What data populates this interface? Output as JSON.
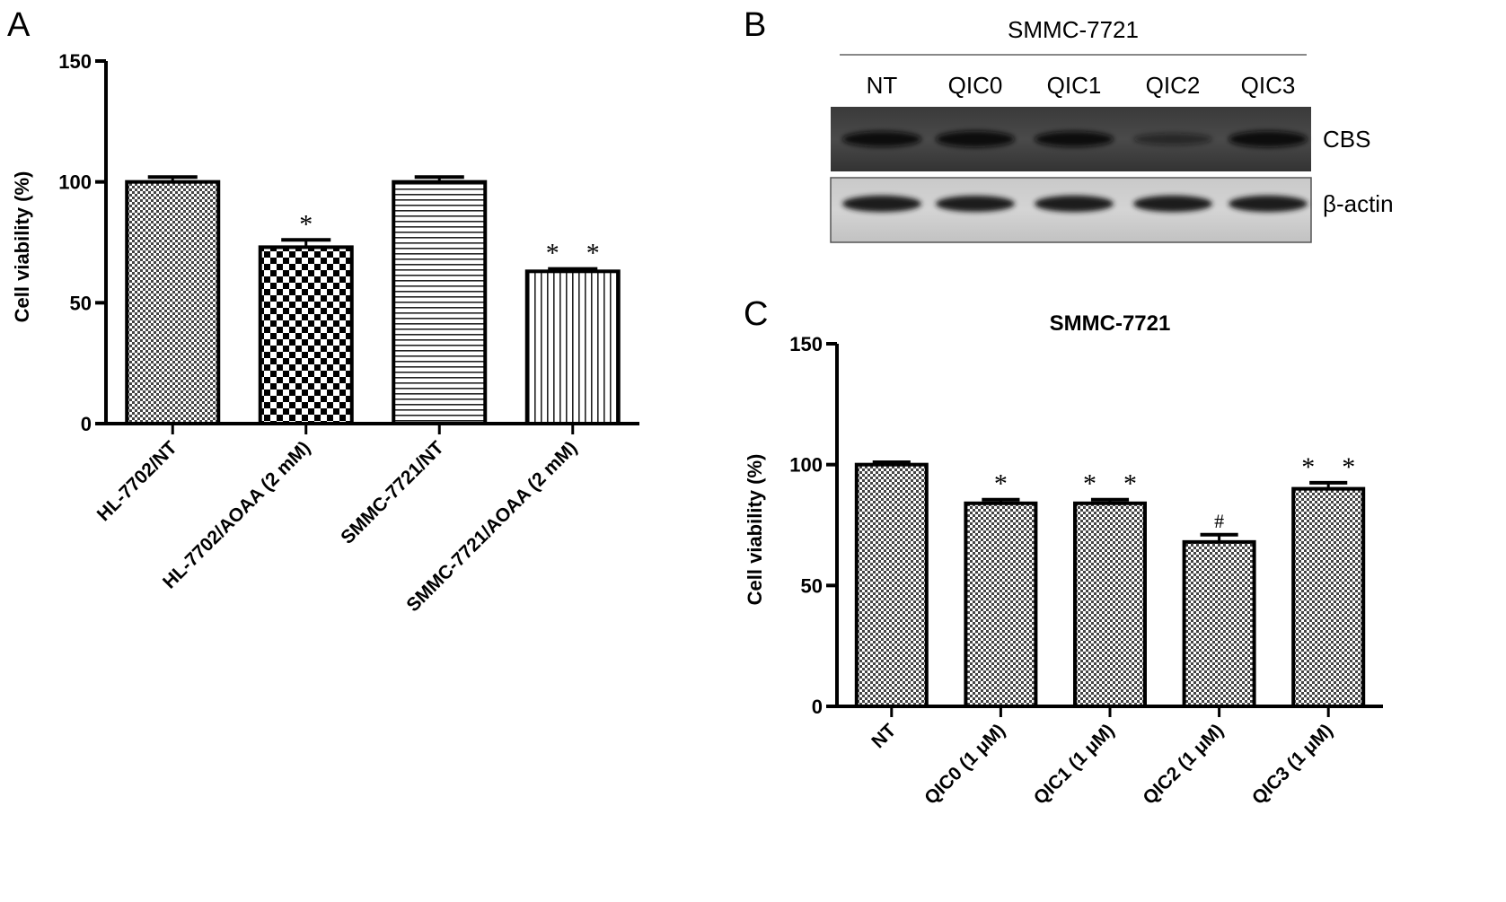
{
  "panels": {
    "A": {
      "letter": "A"
    },
    "B": {
      "letter": "B"
    },
    "C": {
      "letter": "C"
    }
  },
  "chart_data": [
    {
      "panel": "A",
      "type": "bar",
      "title": "",
      "xlabel": "",
      "ylabel": "Cell viability (%)",
      "ylim": [
        0,
        150
      ],
      "yticks": [
        0,
        50,
        100,
        150
      ],
      "categories": [
        "HL-7702/NT",
        "HL-7702/AOAA (2 mM)",
        "SMMC-7721/NT",
        "SMMC-7721/AOAA (2 mM)"
      ],
      "values": [
        100,
        73,
        100,
        63
      ],
      "errors": [
        2,
        3,
        2,
        1
      ],
      "patterns": [
        "fine-check",
        "coarse-check",
        "horizontal-lines",
        "vertical-lines"
      ],
      "significance": [
        "",
        "*",
        "",
        "* *"
      ],
      "grid": false
    },
    {
      "panel": "C",
      "type": "bar",
      "title": "SMMC-7721",
      "xlabel": "",
      "ylabel": "Cell viability (%)",
      "ylim": [
        0,
        150
      ],
      "yticks": [
        0,
        50,
        100,
        150
      ],
      "categories": [
        "NT",
        "QIC0 (1 μM)",
        "QIC1 (1 μM)",
        "QIC2 (1 μM)",
        "QIC3 (1 μM)"
      ],
      "values": [
        100,
        84,
        84,
        68,
        90
      ],
      "errors": [
        1,
        1.5,
        1.5,
        3,
        2.5
      ],
      "patterns": [
        "fine-check",
        "fine-check",
        "fine-check",
        "fine-check",
        "fine-check"
      ],
      "significance": [
        "",
        "*",
        "* *",
        "#",
        "* *"
      ],
      "grid": false
    }
  ],
  "western_blot": {
    "cell_line": "SMMC-7721",
    "lanes": [
      "NT",
      "QIC0",
      "QIC1",
      "QIC2",
      "QIC3"
    ],
    "rows": [
      {
        "label": "CBS",
        "intensities": [
          0.75,
          0.85,
          0.75,
          0.3,
          0.85
        ]
      },
      {
        "label": "β-actin",
        "intensities": [
          0.85,
          0.8,
          0.85,
          0.85,
          0.85
        ]
      }
    ]
  }
}
